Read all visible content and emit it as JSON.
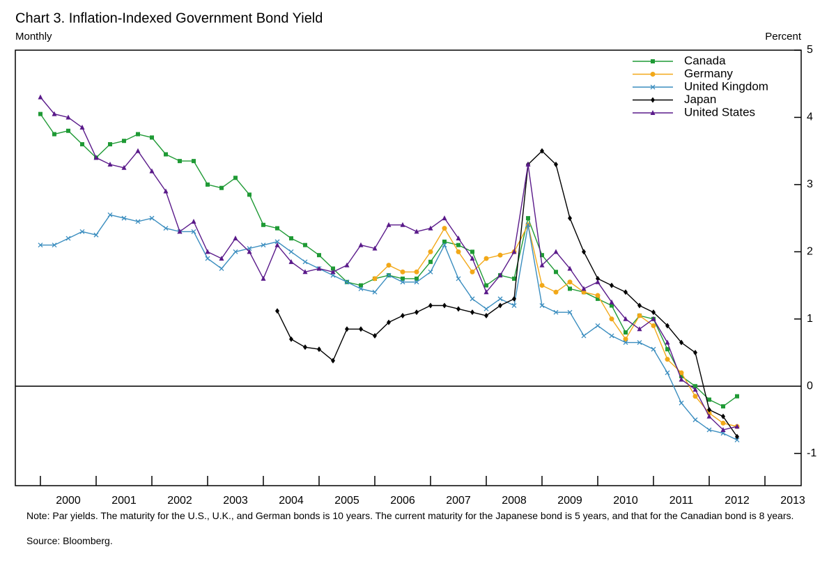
{
  "chart_data": {
    "type": "line",
    "title": "Chart 3. Inflation-Indexed Government Bond Yield",
    "subtitle": "Monthly",
    "y_label": "Percent",
    "x": [
      2000,
      2000.25,
      2000.5,
      2000.75,
      2001,
      2001.25,
      2001.5,
      2001.75,
      2002,
      2002.25,
      2002.5,
      2002.75,
      2003,
      2003.25,
      2003.5,
      2003.75,
      2004,
      2004.25,
      2004.5,
      2004.75,
      2005,
      2005.25,
      2005.5,
      2005.75,
      2006,
      2006.25,
      2006.5,
      2006.75,
      2007,
      2007.25,
      2007.5,
      2007.75,
      2008,
      2008.25,
      2008.5,
      2008.75,
      2009,
      2009.25,
      2009.5,
      2009.75,
      2010,
      2010.25,
      2010.5,
      2010.75,
      2011,
      2011.25,
      2011.5,
      2011.75,
      2012,
      2012.25,
      2012.5
    ],
    "series": [
      {
        "name": "Canada",
        "color": "#1f9a35",
        "marker": "square",
        "values": [
          4.05,
          3.75,
          3.8,
          3.6,
          3.4,
          3.6,
          3.65,
          3.75,
          3.7,
          3.45,
          3.35,
          3.35,
          3.0,
          2.95,
          3.1,
          2.85,
          2.4,
          2.35,
          2.2,
          2.1,
          1.95,
          1.75,
          1.55,
          1.5,
          1.6,
          1.65,
          1.6,
          1.6,
          1.85,
          2.15,
          2.1,
          2.0,
          1.5,
          1.65,
          1.6,
          2.5,
          1.95,
          1.7,
          1.45,
          1.4,
          1.3,
          1.2,
          0.8,
          1.05,
          1.0,
          0.55,
          0.15,
          0.0,
          -0.2,
          -0.3,
          -0.15
        ]
      },
      {
        "name": "Germany",
        "color": "#f2a818",
        "marker": "circle",
        "values": [
          null,
          null,
          null,
          null,
          null,
          null,
          null,
          null,
          null,
          null,
          null,
          null,
          null,
          null,
          null,
          null,
          null,
          null,
          null,
          null,
          null,
          null,
          null,
          null,
          1.6,
          1.8,
          1.7,
          1.7,
          2.0,
          2.35,
          2.0,
          1.7,
          1.9,
          1.95,
          2.0,
          2.4,
          1.5,
          1.4,
          1.55,
          1.4,
          1.35,
          1.0,
          0.7,
          1.05,
          0.9,
          0.4,
          0.2,
          -0.15,
          -0.4,
          -0.55,
          -0.6
        ]
      },
      {
        "name": "United Kingdom",
        "color": "#3a8dbf",
        "marker": "x",
        "values": [
          2.1,
          2.1,
          2.2,
          2.3,
          2.25,
          2.55,
          2.5,
          2.45,
          2.5,
          2.35,
          2.3,
          2.3,
          1.9,
          1.75,
          2.0,
          2.05,
          2.1,
          2.15,
          2.0,
          1.85,
          1.75,
          1.65,
          1.55,
          1.45,
          1.4,
          1.65,
          1.55,
          1.55,
          1.7,
          2.1,
          1.6,
          1.3,
          1.15,
          1.3,
          1.2,
          2.4,
          1.2,
          1.1,
          1.1,
          0.75,
          0.9,
          0.75,
          0.65,
          0.65,
          0.55,
          0.2,
          -0.25,
          -0.5,
          -0.65,
          -0.7,
          -0.8
        ]
      },
      {
        "name": "Japan",
        "color": "#000000",
        "marker": "diamond",
        "values": [
          null,
          null,
          null,
          null,
          null,
          null,
          null,
          null,
          null,
          null,
          null,
          null,
          null,
          null,
          null,
          null,
          null,
          1.12,
          0.7,
          0.58,
          0.55,
          0.38,
          0.85,
          0.85,
          0.75,
          0.95,
          1.05,
          1.1,
          1.2,
          1.2,
          1.15,
          1.1,
          1.05,
          1.2,
          1.3,
          3.3,
          3.5,
          3.3,
          2.5,
          2.0,
          1.6,
          1.5,
          1.4,
          1.2,
          1.1,
          0.9,
          0.65,
          0.5,
          -0.35,
          -0.45,
          -0.75
        ]
      },
      {
        "name": "United States",
        "color": "#5a1a8a",
        "marker": "triangle",
        "values": [
          4.3,
          4.05,
          4.0,
          3.85,
          3.4,
          3.3,
          3.25,
          3.5,
          3.2,
          2.9,
          2.3,
          2.45,
          2.0,
          1.9,
          2.2,
          2.0,
          1.6,
          2.1,
          1.85,
          1.7,
          1.75,
          1.7,
          1.8,
          2.1,
          2.05,
          2.4,
          2.4,
          2.3,
          2.35,
          2.5,
          2.2,
          1.9,
          1.4,
          1.65,
          2.0,
          3.3,
          1.8,
          2.0,
          1.75,
          1.45,
          1.55,
          1.25,
          1.0,
          0.85,
          1.0,
          0.65,
          0.1,
          -0.05,
          -0.45,
          -0.65,
          -0.6
        ]
      }
    ],
    "xlim": [
      1999.55,
      2013.65
    ],
    "xticks": [
      2000,
      2001,
      2002,
      2003,
      2004,
      2005,
      2006,
      2007,
      2008,
      2009,
      2010,
      2011,
      2012,
      2013
    ],
    "ylim": [
      -1.48,
      5
    ],
    "yticks": [
      -1,
      0,
      1,
      2,
      3,
      4,
      5
    ],
    "zero_line": true,
    "legend": "top-right",
    "note": "Note:  Par yields.  The maturity for the U.S., U.K., and German bonds is 10 years.  The current maturity for the Japanese bond is 5 years, and that for the Canadian bond is 8 years.",
    "source": "Source:  Bloomberg."
  }
}
